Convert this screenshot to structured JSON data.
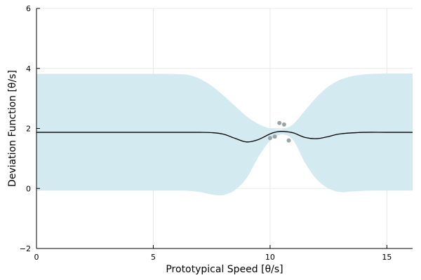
{
  "chart_data": {
    "type": "line",
    "xlabel": "Prototypical Speed [θ/s]",
    "ylabel": "Deviation Function [θ/s]",
    "xlim": [
      0,
      16.1
    ],
    "ylim": [
      -2,
      6
    ],
    "xticks": [
      0,
      5,
      10,
      15
    ],
    "yticks": [
      -2,
      0,
      2,
      4,
      6
    ],
    "grid": true,
    "legend": "none",
    "colors": {
      "band": "#d3eaf0",
      "line": "#000000",
      "points": "#9aa3a5"
    },
    "mean": {
      "x": [
        0,
        5,
        6,
        7,
        7.5,
        8,
        8.5,
        9,
        9.5,
        10,
        10.3,
        10.6,
        11,
        11.5,
        12,
        12.5,
        13,
        14,
        15,
        16.1
      ],
      "y": [
        1.87,
        1.87,
        1.87,
        1.87,
        1.86,
        1.81,
        1.67,
        1.55,
        1.63,
        1.82,
        1.89,
        1.9,
        1.85,
        1.7,
        1.66,
        1.73,
        1.82,
        1.87,
        1.87,
        1.87
      ]
    },
    "band": {
      "x": [
        0,
        5,
        6,
        6.5,
        7,
        7.5,
        8,
        8.5,
        9,
        9.5,
        10,
        10.3,
        10.6,
        11,
        11.5,
        12,
        12.5,
        13,
        13.5,
        14,
        14.5,
        15,
        16.1
      ],
      "upper": [
        3.82,
        3.82,
        3.81,
        3.78,
        3.65,
        3.42,
        3.1,
        2.75,
        2.4,
        2.15,
        2.0,
        1.98,
        1.99,
        2.15,
        2.6,
        3.05,
        3.4,
        3.62,
        3.74,
        3.8,
        3.82,
        3.83,
        3.83
      ],
      "lower": [
        -0.07,
        -0.07,
        -0.07,
        -0.08,
        -0.12,
        -0.2,
        -0.22,
        -0.05,
        0.35,
        1.05,
        1.6,
        1.75,
        1.8,
        1.6,
        0.85,
        0.3,
        0.0,
        -0.12,
        -0.1,
        -0.08,
        -0.07,
        -0.07,
        -0.07
      ]
    },
    "points": {
      "x": [
        10.0,
        10.2,
        10.4,
        10.6,
        10.8
      ],
      "y": [
        1.68,
        1.73,
        2.18,
        2.13,
        1.6
      ]
    }
  }
}
